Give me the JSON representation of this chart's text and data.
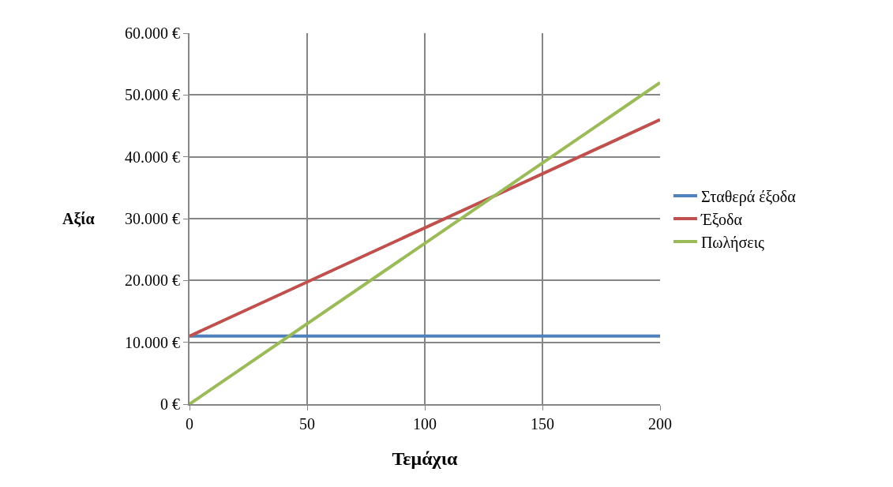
{
  "chart_data": {
    "type": "line",
    "xlabel": "Τεμάχια",
    "ylabel": "Αξία",
    "x": [
      0,
      200
    ],
    "series": [
      {
        "name": "Σταθερά έξοδα",
        "color": "#4f81bd",
        "values": [
          11000,
          11000
        ]
      },
      {
        "name": "Έξοδα",
        "color": "#c0504d",
        "values": [
          11000,
          46000
        ]
      },
      {
        "name": "Πωλήσεις",
        "color": "#9bbb59",
        "values": [
          0,
          52000
        ]
      }
    ],
    "xlim": [
      0,
      200
    ],
    "xticks": [
      0,
      50,
      100,
      150,
      200
    ],
    "ylim": [
      0,
      60000
    ],
    "yticks": [
      {
        "value": 0,
        "label": "0 €"
      },
      {
        "value": 10000,
        "label": "10.000 €"
      },
      {
        "value": 20000,
        "label": "20.000 €"
      },
      {
        "value": 30000,
        "label": "30.000 €"
      },
      {
        "value": 40000,
        "label": "40.000 €"
      },
      {
        "value": 50000,
        "label": "50.000 €"
      },
      {
        "value": 60000,
        "label": "60.000 €"
      }
    ],
    "grid": true,
    "legend": "right",
    "marker": "none",
    "line_style": "solid"
  }
}
